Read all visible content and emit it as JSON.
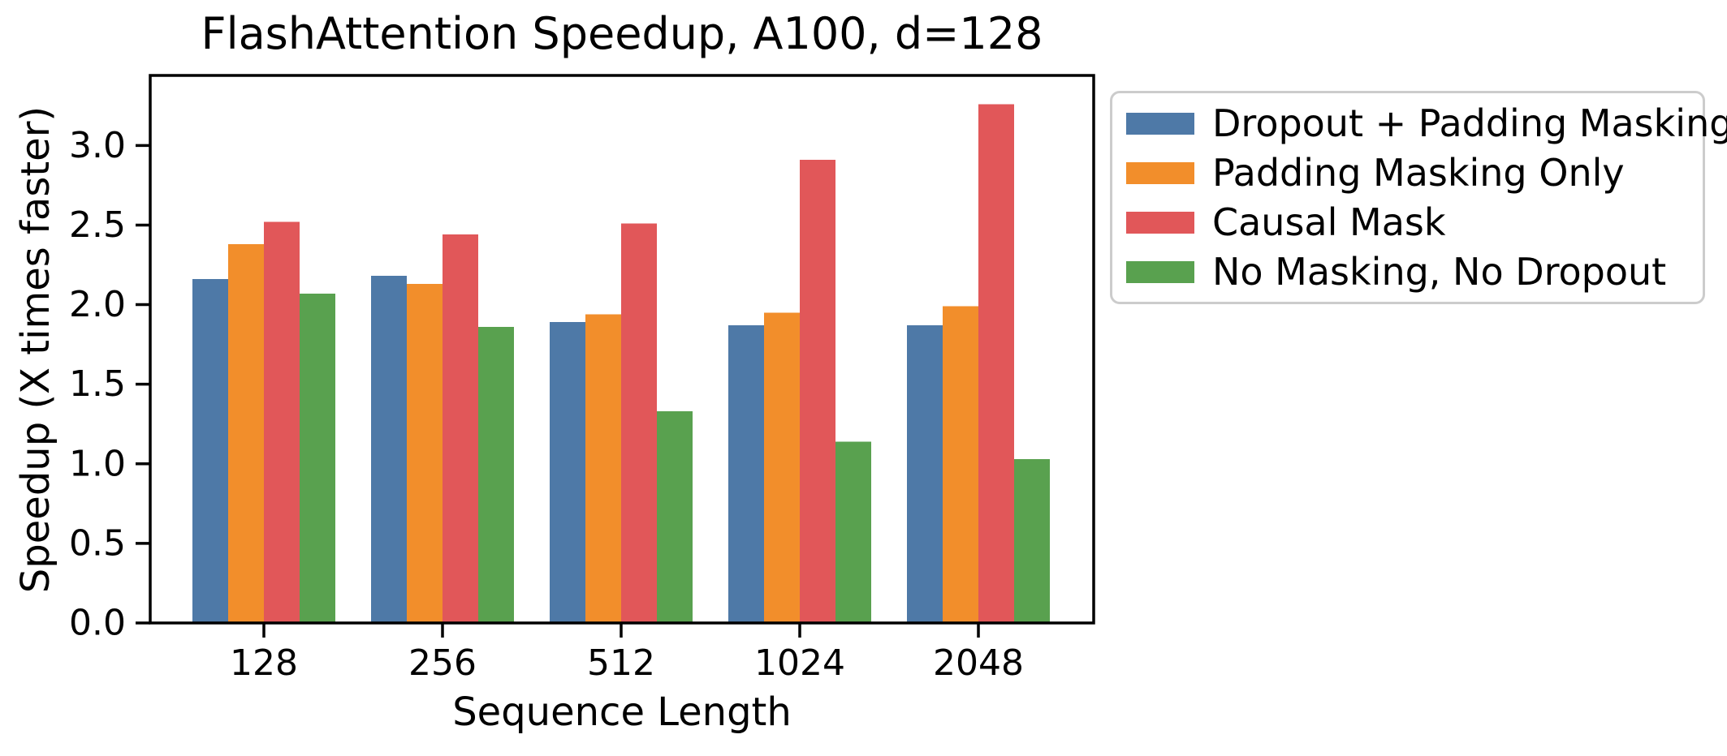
{
  "chart_data": {
    "type": "bar",
    "title": "FlashAttention Speedup, A100, d=128",
    "xlabel": "Sequence Length",
    "ylabel": "Speedup (X times faster)",
    "categories": [
      "128",
      "256",
      "512",
      "1024",
      "2048"
    ],
    "series": [
      {
        "name": "Dropout + Padding Masking",
        "color": "#4e79a7",
        "values": [
          2.16,
          2.18,
          1.89,
          1.87,
          1.87
        ]
      },
      {
        "name": "Padding Masking Only",
        "color": "#f28e2b",
        "values": [
          2.38,
          2.13,
          1.94,
          1.95,
          1.99
        ]
      },
      {
        "name": "Causal Mask",
        "color": "#e15759",
        "values": [
          2.52,
          2.44,
          2.51,
          2.91,
          3.26
        ]
      },
      {
        "name": "No Masking, No Dropout",
        "color": "#59a14f",
        "values": [
          2.07,
          1.86,
          1.33,
          1.14,
          1.03
        ]
      }
    ],
    "ylim": [
      0,
      3.44
    ],
    "ytick_labels": [
      "0.0",
      "0.5",
      "1.0",
      "1.5",
      "2.0",
      "2.5",
      "3.0"
    ],
    "grid": false,
    "legend_position": "outside-right",
    "axis_color": "#000000",
    "legend_border_color": "#cccccc",
    "background_color": "#ffffff"
  }
}
